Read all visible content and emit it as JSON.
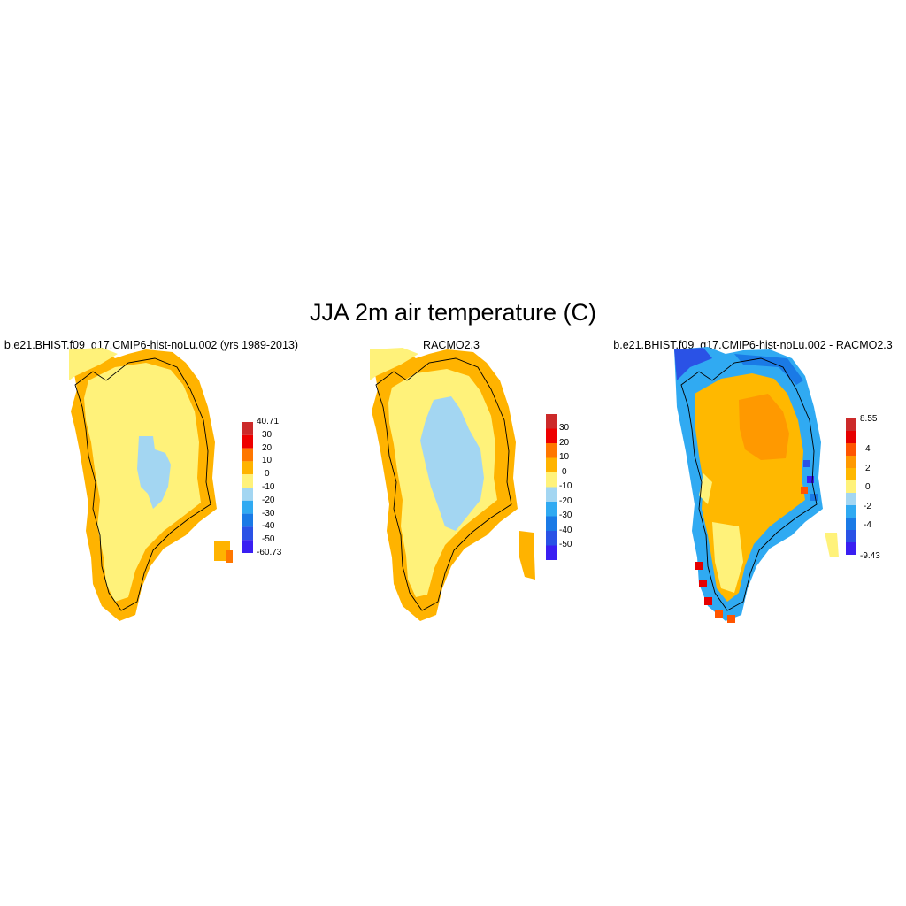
{
  "figure": {
    "title": "JJA 2m air temperature (C)"
  },
  "panels": [
    {
      "title": "b.e21.BHIST.f09_g17.CMIP6-hist-noLu.002 (yrs 1989-2013)",
      "colorbar": {
        "colors": [
          "#cc2a2a",
          "#ee0000",
          "#ff7700",
          "#ffb300",
          "#fff27a",
          "#a3d6f2",
          "#30aaf2",
          "#1a7ae6",
          "#2a52e6",
          "#3a1ff2"
        ],
        "labels": [
          "40.71",
          "30",
          "20",
          "10",
          "0",
          "-10",
          "-20",
          "-30",
          "-40",
          "-50",
          "-60.73"
        ],
        "label_type": "boundaries"
      }
    },
    {
      "title": "RACMO2.3",
      "colorbar": {
        "colors": [
          "#cc2a2a",
          "#ee0000",
          "#ff7700",
          "#ffb300",
          "#fff27a",
          "#a3d6f2",
          "#30aaf2",
          "#1a7ae6",
          "#2a52e6",
          "#3a1ff2"
        ],
        "labels": [
          "30",
          "20",
          "10",
          "0",
          "-10",
          "-20",
          "-30",
          "-40",
          "-50"
        ],
        "label_type": "interior"
      }
    },
    {
      "title": "b.e21.BHIST.f09_g17.CMIP6-hist-noLu.002 - RACMO2.3",
      "colorbar": {
        "colors": [
          "#cc2a2a",
          "#e60000",
          "#ff5500",
          "#ff9900",
          "#ffb800",
          "#fff27a",
          "#a3d6f2",
          "#30aaf2",
          "#1a7ae6",
          "#2a52e6",
          "#3a1ff2"
        ],
        "labels": [
          "8.55",
          "4",
          "2",
          "0",
          "-2",
          "-4",
          "-9.43"
        ],
        "label_type": "sparse"
      }
    }
  ]
}
